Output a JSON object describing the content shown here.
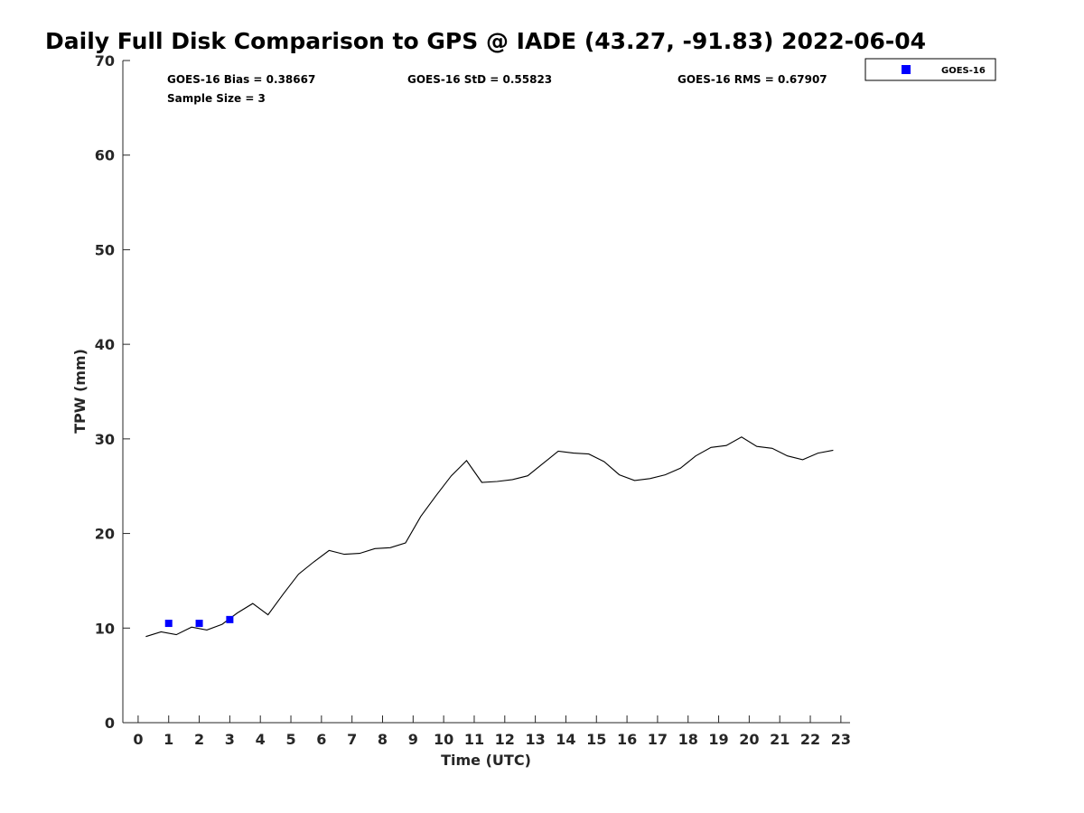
{
  "chart_data": {
    "type": "line",
    "title": "Daily Full Disk Comparison to GPS @ IADE (43.27, -91.83) 2022-06-04",
    "xlabel": "Time (UTC)",
    "ylabel": "TPW (mm)",
    "xlim": [
      -0.5,
      23.3
    ],
    "ylim": [
      0,
      70
    ],
    "x_ticks": [
      0,
      1,
      2,
      3,
      4,
      5,
      6,
      7,
      8,
      9,
      10,
      11,
      12,
      13,
      14,
      15,
      16,
      17,
      18,
      19,
      20,
      21,
      22,
      23
    ],
    "y_ticks": [
      0,
      10,
      20,
      30,
      40,
      50,
      60,
      70
    ],
    "grid": false,
    "legend_position": "top-right outside",
    "stats": {
      "bias": "GOES-16 Bias = 0.38667",
      "std": "GOES-16 StD = 0.55823",
      "rms": "GOES-16 RMS = 0.67907",
      "sample_size": "Sample Size = 3"
    },
    "series": [
      {
        "kind": "line",
        "color": "#000000",
        "points": [
          [
            0.25,
            9.1
          ],
          [
            0.75,
            9.6
          ],
          [
            1.25,
            9.3
          ],
          [
            1.75,
            10.1
          ],
          [
            2.25,
            9.8
          ],
          [
            2.75,
            10.4
          ],
          [
            3.25,
            11.6
          ],
          [
            3.75,
            12.6
          ],
          [
            4.25,
            11.4
          ],
          [
            4.75,
            13.6
          ],
          [
            5.25,
            15.7
          ],
          [
            5.75,
            17.0
          ],
          [
            6.25,
            18.2
          ],
          [
            6.75,
            17.8
          ],
          [
            7.25,
            17.9
          ],
          [
            7.75,
            18.4
          ],
          [
            8.25,
            18.5
          ],
          [
            8.75,
            19.0
          ],
          [
            9.25,
            21.8
          ],
          [
            9.75,
            24.0
          ],
          [
            10.25,
            26.1
          ],
          [
            10.75,
            27.7
          ],
          [
            11.25,
            25.4
          ],
          [
            11.75,
            25.5
          ],
          [
            12.25,
            25.7
          ],
          [
            12.75,
            26.1
          ],
          [
            13.25,
            27.4
          ],
          [
            13.75,
            28.7
          ],
          [
            14.25,
            28.5
          ],
          [
            14.75,
            28.4
          ],
          [
            15.25,
            27.6
          ],
          [
            15.75,
            26.2
          ],
          [
            16.25,
            25.6
          ],
          [
            16.75,
            25.8
          ],
          [
            17.25,
            26.2
          ],
          [
            17.75,
            26.9
          ],
          [
            18.25,
            28.2
          ],
          [
            18.75,
            29.1
          ],
          [
            19.25,
            29.3
          ],
          [
            19.75,
            30.2
          ],
          [
            20.25,
            29.2
          ],
          [
            20.75,
            29.0
          ],
          [
            21.25,
            28.2
          ],
          [
            21.75,
            27.8
          ],
          [
            22.25,
            28.5
          ],
          [
            22.75,
            28.8
          ]
        ]
      },
      {
        "kind": "scatter",
        "name": "GOES-16",
        "color": "#0000ff",
        "points": [
          [
            1.0,
            10.5
          ],
          [
            2.0,
            10.5
          ],
          [
            3.0,
            10.9
          ]
        ]
      }
    ]
  }
}
